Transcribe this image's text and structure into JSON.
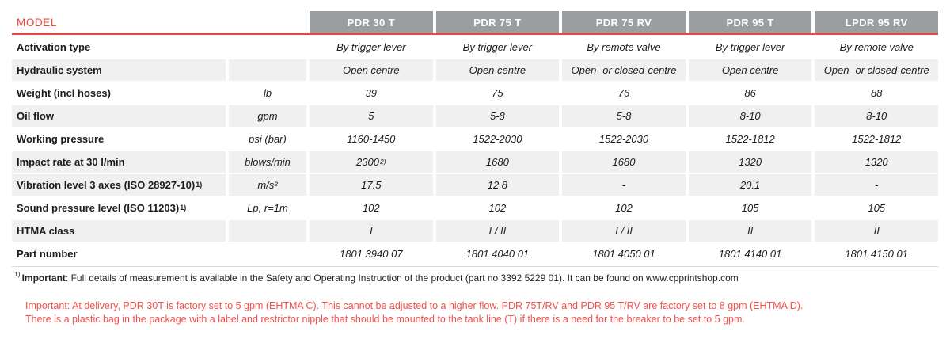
{
  "colors": {
    "accent_red": "#ee4540",
    "warning_red": "#f2514c",
    "header_bg": "#9b9ea1",
    "stripe_bg": "#f0f0f0"
  },
  "table": {
    "model_label": "MODEL",
    "columns": [
      "PDR 30 T",
      "PDR 75 T",
      "PDR 75 RV",
      "PDR 95 T",
      "LPDR 95 RV"
    ],
    "rows": [
      {
        "label": "Activation type",
        "unit": "",
        "values": [
          "By trigger lever",
          "By trigger lever",
          "By remote valve",
          "By trigger lever",
          "By remote valve"
        ],
        "shaded": false
      },
      {
        "label": "Hydraulic system",
        "unit": "",
        "values": [
          "Open centre",
          "Open centre",
          "Open- or closed-centre",
          "Open centre",
          "Open- or closed-centre"
        ],
        "shaded": true
      },
      {
        "label": "Weight (incl hoses)",
        "unit": "lb",
        "values": [
          "39",
          "75",
          "76",
          "86",
          "88"
        ],
        "shaded": false
      },
      {
        "label": "Oil flow",
        "unit": "gpm",
        "values": [
          "5",
          "5-8",
          "5-8",
          "8-10",
          "8-10"
        ],
        "shaded": true
      },
      {
        "label": "Working pressure",
        "unit": "psi (bar)",
        "values": [
          "1160-1450",
          "1522-2030",
          "1522-2030",
          "1522-1812",
          "1522-1812"
        ],
        "shaded": false
      },
      {
        "label": "Impact rate at 30 l/min",
        "unit": "blows/min",
        "values": [
          "2300",
          "1680",
          "1680",
          "1320",
          "1320"
        ],
        "sups": [
          "2)",
          "",
          "",
          "",
          ""
        ],
        "shaded": true
      },
      {
        "label": "Vibration level 3 axes (ISO 28927-10)",
        "label_sup": "1)",
        "unit": "m/s²",
        "values": [
          "17.5",
          "12.8",
          "-",
          "20.1",
          "-"
        ],
        "shaded": true
      },
      {
        "label": "Sound pressure level (ISO 11203)",
        "label_sup": "1)",
        "unit": "Lp, r=1m",
        "values": [
          "102",
          "102",
          "102",
          "105",
          "105"
        ],
        "shaded": false
      },
      {
        "label": "HTMA class",
        "unit": "",
        "values": [
          "I",
          "I / II",
          "I / II",
          "II",
          "II"
        ],
        "shaded": true
      },
      {
        "label": "Part number",
        "unit": "",
        "values": [
          "1801 3940 07",
          "1801 4040 01",
          "1801 4050 01",
          "1801 4140 01",
          "1801 4150 01"
        ],
        "shaded": false
      }
    ]
  },
  "footnote": {
    "sup": "1)",
    "bold": "Important",
    "text": ": Full details of measurement is available in the Safety and Operating Instruction of the product (part no 3392 5229 01). It can be found on www.cpprintshop.com"
  },
  "warning": {
    "line1": "Important: At delivery, PDR 30T is factory set to 5 gpm (EHTMA C). This cannot be adjusted to a higher flow. PDR 75T/RV and PDR 95 T/RV are factory set to 8 gpm (EHTMA D).",
    "line2": "There is a plastic bag in the package with a label and restrictor nipple that should be mounted to the tank line (T) if there is a need for the breaker to be set to 5 gpm."
  }
}
